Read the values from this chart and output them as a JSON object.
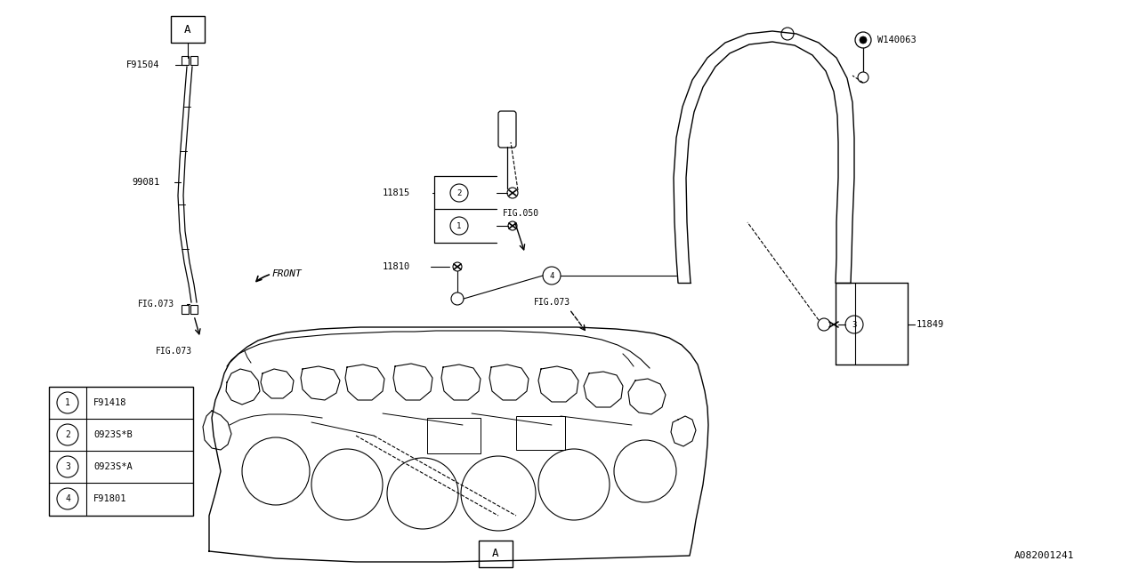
{
  "bg_color": "#ffffff",
  "line_color": "#000000",
  "fig_width": 12.8,
  "fig_height": 6.4,
  "diagram_id": "A082001241",
  "legend_items": [
    {
      "num": "1",
      "code": "F91418"
    },
    {
      "num": "2",
      "code": "0923S*B"
    },
    {
      "num": "3",
      "code": "0923S*A"
    },
    {
      "num": "4",
      "code": "F91801"
    }
  ]
}
